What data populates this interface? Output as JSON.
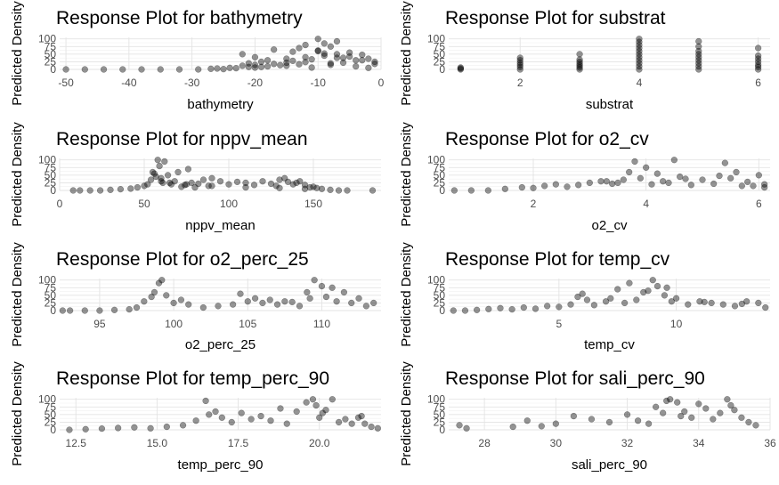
{
  "chart_data": [
    {
      "type": "scatter",
      "title": "Response Plot for bathymetry",
      "xlabel": "bathymetry",
      "ylabel": "Predicted Density",
      "xlim": [
        -51,
        0
      ],
      "ylim": [
        0,
        105
      ],
      "xticks": [
        -50,
        -40,
        -30,
        -20,
        -10,
        0
      ],
      "xtick_labels": [
        "-50",
        "-40",
        "-30",
        "-20",
        "-10",
        "0"
      ],
      "yticks": [
        0,
        25,
        50,
        75,
        100
      ],
      "ytick_labels": [
        "0",
        "25",
        "50",
        "75",
        "100"
      ],
      "grid": true,
      "x": [
        -50,
        -47,
        -44,
        -41,
        -38,
        -35,
        -32,
        -29,
        -27,
        -26,
        -25,
        -24,
        -23,
        -22,
        -21,
        -21,
        -20,
        -20,
        -19,
        -18,
        -18,
        -17,
        -16,
        -15,
        -15,
        -14,
        -13,
        -12,
        -12,
        -11,
        -10,
        -10,
        -9,
        -8,
        -8,
        -7,
        -6,
        -5,
        -4,
        -3,
        -2,
        -1,
        -22,
        -20,
        -17,
        -14,
        -12,
        -10,
        -9,
        -7,
        -5,
        -3,
        -1,
        -19,
        -15,
        -11,
        -8,
        -6,
        -4,
        -2,
        -13,
        -9,
        -7
      ],
      "y": [
        0,
        0,
        0,
        0,
        0,
        0,
        0,
        0,
        2,
        3,
        1,
        5,
        4,
        12,
        8,
        20,
        6,
        15,
        25,
        10,
        30,
        18,
        14,
        22,
        35,
        28,
        17,
        40,
        24,
        33,
        100,
        60,
        45,
        20,
        75,
        92,
        38,
        55,
        30,
        48,
        35,
        18,
        50,
        40,
        65,
        58,
        80,
        62,
        85,
        50,
        42,
        30,
        25,
        8,
        12,
        6,
        15,
        22,
        10,
        5,
        70,
        52,
        38
      ]
    },
    {
      "type": "scatter",
      "title": "Response Plot for substrat",
      "xlabel": "substrat",
      "ylabel": "Predicted Density",
      "xlim": [
        0.8,
        6.2
      ],
      "ylim": [
        0,
        105
      ],
      "xticks": [
        2,
        4,
        6
      ],
      "xtick_labels": [
        "2",
        "4",
        "6"
      ],
      "yticks": [
        0,
        25,
        50,
        75,
        100
      ],
      "ytick_labels": [
        "0",
        "25",
        "50",
        "75",
        "100"
      ],
      "grid": true,
      "x": [
        1,
        1,
        1,
        2,
        2,
        2,
        2,
        2,
        2,
        3,
        3,
        3,
        3,
        3,
        3,
        3,
        4,
        4,
        4,
        4,
        4,
        4,
        4,
        4,
        4,
        4,
        4,
        5,
        5,
        5,
        5,
        5,
        5,
        5,
        5,
        5,
        6,
        6,
        6,
        6,
        6,
        6,
        6
      ],
      "y": [
        0,
        3,
        6,
        0,
        8,
        15,
        22,
        30,
        38,
        0,
        6,
        12,
        18,
        25,
        32,
        50,
        0,
        10,
        20,
        30,
        40,
        50,
        60,
        70,
        80,
        90,
        100,
        0,
        10,
        20,
        30,
        40,
        50,
        60,
        75,
        92,
        0,
        8,
        15,
        25,
        35,
        45,
        70
      ]
    },
    {
      "type": "scatter",
      "title": "Response Plot for nppv_mean",
      "xlabel": "nppv_mean",
      "ylabel": "Predicted Density",
      "xlim": [
        0,
        190
      ],
      "ylim": [
        0,
        105
      ],
      "xticks": [
        0,
        50,
        100,
        150
      ],
      "xtick_labels": [
        "0",
        "50",
        "100",
        "150"
      ],
      "grid": true,
      "yticks": [
        0,
        25,
        50,
        75,
        100
      ],
      "ytick_labels": [
        "0",
        "25",
        "50",
        "75",
        "100"
      ],
      "x": [
        8,
        12,
        18,
        24,
        30,
        36,
        42,
        46,
        50,
        52,
        54,
        56,
        57,
        58,
        59,
        60,
        61,
        62,
        64,
        66,
        68,
        70,
        72,
        74,
        76,
        78,
        80,
        82,
        85,
        88,
        90,
        95,
        100,
        105,
        110,
        115,
        120,
        125,
        128,
        130,
        133,
        135,
        138,
        140,
        142,
        145,
        148,
        150,
        152,
        155,
        160,
        165,
        170,
        185,
        60,
        75,
        90,
        110,
        130,
        145,
        55,
        65
      ],
      "y": [
        0,
        0,
        0,
        0,
        2,
        4,
        6,
        10,
        15,
        20,
        35,
        55,
        45,
        100,
        80,
        40,
        25,
        95,
        50,
        20,
        30,
        60,
        12,
        18,
        70,
        25,
        10,
        22,
        35,
        15,
        40,
        30,
        20,
        28,
        25,
        18,
        30,
        22,
        15,
        35,
        40,
        28,
        20,
        25,
        30,
        18,
        10,
        12,
        8,
        5,
        2,
        0,
        0,
        0,
        30,
        20,
        15,
        10,
        8,
        5,
        60,
        25
      ]
    },
    {
      "type": "scatter",
      "title": "Response Plot for o2_cv",
      "xlabel": "o2_cv",
      "ylabel": "Predicted Density",
      "xlim": [
        0.5,
        6.2
      ],
      "ylim": [
        0,
        105
      ],
      "xticks": [
        2,
        4,
        6
      ],
      "xtick_labels": [
        "2",
        "4",
        "6"
      ],
      "yticks": [
        0,
        25,
        50,
        75,
        100
      ],
      "ytick_labels": [
        "0",
        "25",
        "50",
        "75",
        "100"
      ],
      "grid": true,
      "x": [
        0.6,
        0.9,
        1.2,
        1.5,
        1.8,
        2.0,
        2.2,
        2.4,
        2.6,
        2.8,
        3.0,
        3.2,
        3.4,
        3.6,
        3.7,
        3.8,
        3.9,
        4.0,
        4.1,
        4.2,
        4.3,
        4.4,
        4.5,
        4.6,
        4.8,
        5.0,
        5.2,
        5.4,
        5.5,
        5.6,
        5.8,
        5.9,
        6.0,
        6.1,
        6.1,
        3.3,
        3.5,
        4.7,
        5.3,
        5.7
      ],
      "y": [
        0,
        0,
        0,
        5,
        10,
        8,
        15,
        20,
        12,
        18,
        25,
        30,
        22,
        35,
        60,
        95,
        40,
        75,
        20,
        55,
        30,
        25,
        100,
        45,
        18,
        35,
        22,
        90,
        40,
        60,
        28,
        15,
        50,
        20,
        10,
        30,
        25,
        38,
        48,
        15
      ]
    },
    {
      "type": "scatter",
      "title": "Response Plot for o2_perc_25",
      "xlabel": "o2_perc_25",
      "ylabel": "Predicted Density",
      "xlim": [
        92.3,
        114
      ],
      "ylim": [
        0,
        105
      ],
      "xticks": [
        95,
        100,
        105,
        110
      ],
      "xtick_labels": [
        "95",
        "100",
        "105",
        "110"
      ],
      "yticks": [
        0,
        25,
        50,
        75,
        100
      ],
      "ytick_labels": [
        "0",
        "25",
        "50",
        "75",
        "100"
      ],
      "grid": true,
      "x": [
        92.5,
        93,
        94,
        95,
        96,
        97,
        97.5,
        98,
        98.5,
        98.7,
        99,
        99.2,
        99.5,
        100,
        100.5,
        101,
        102,
        103,
        104,
        104.5,
        105,
        105.5,
        106,
        106.5,
        107,
        107.5,
        108,
        108.5,
        109,
        109.2,
        109.5,
        110,
        110.3,
        110.7,
        111,
        111.5,
        112,
        112.5,
        113,
        113.5
      ],
      "y": [
        0,
        0,
        0,
        0,
        2,
        4,
        10,
        30,
        45,
        60,
        90,
        100,
        50,
        25,
        35,
        20,
        10,
        15,
        20,
        55,
        30,
        40,
        25,
        35,
        20,
        30,
        28,
        15,
        60,
        40,
        100,
        80,
        45,
        75,
        30,
        60,
        25,
        40,
        15,
        25
      ]
    },
    {
      "type": "scatter",
      "title": "Response Plot for temp_cv",
      "xlabel": "temp_cv",
      "ylabel": "Predicted Density",
      "xlim": [
        0.3,
        14
      ],
      "ylim": [
        0,
        105
      ],
      "xticks": [
        5,
        10
      ],
      "xtick_labels": [
        "5",
        "10"
      ],
      "yticks": [
        0,
        25,
        50,
        75,
        100
      ],
      "ytick_labels": [
        "0",
        "25",
        "50",
        "75",
        "100"
      ],
      "grid": true,
      "x": [
        0.5,
        1,
        1.5,
        2,
        2.5,
        3,
        3.5,
        4,
        4.5,
        5,
        5.5,
        5.8,
        6,
        6.5,
        7,
        7.5,
        7.8,
        8,
        8.3,
        8.6,
        9,
        9.2,
        9.5,
        9.8,
        10,
        10.5,
        11,
        11.5,
        12,
        12.5,
        13,
        13.5,
        13.8,
        6.2,
        7.2,
        8.8,
        9.6,
        11.2,
        12.8
      ],
      "y": [
        0,
        0,
        2,
        5,
        8,
        4,
        10,
        6,
        15,
        12,
        20,
        45,
        55,
        18,
        30,
        70,
        25,
        90,
        35,
        60,
        100,
        80,
        50,
        30,
        40,
        20,
        30,
        25,
        20,
        15,
        30,
        25,
        10,
        35,
        40,
        65,
        75,
        28,
        22
      ]
    },
    {
      "type": "scatter",
      "title": "Response Plot for temp_perc_90",
      "xlabel": "temp_perc_90",
      "ylabel": "Predicted Density",
      "xlim": [
        12,
        21.9
      ],
      "ylim": [
        0,
        105
      ],
      "xticks": [
        12.5,
        15.0,
        17.5,
        20.0
      ],
      "xtick_labels": [
        "12.5",
        "15.0",
        "17.5",
        "20.0"
      ],
      "yticks": [
        0,
        25,
        50,
        75,
        100
      ],
      "ytick_labels": [
        "0",
        "25",
        "50",
        "75",
        "100"
      ],
      "grid": true,
      "x": [
        12.3,
        12.8,
        13.3,
        13.8,
        14.3,
        14.8,
        15.3,
        15.8,
        16.2,
        16.5,
        16.8,
        17.0,
        17.3,
        17.6,
        17.9,
        18.2,
        18.5,
        18.8,
        19.0,
        19.3,
        19.6,
        19.8,
        20.0,
        20.2,
        20.4,
        20.6,
        20.8,
        21.0,
        21.2,
        21.4,
        21.6,
        21.8,
        16.6,
        19.9,
        20.1,
        21.3
      ],
      "y": [
        0,
        2,
        4,
        6,
        8,
        5,
        10,
        15,
        30,
        95,
        60,
        40,
        25,
        55,
        35,
        45,
        30,
        70,
        20,
        60,
        90,
        100,
        40,
        65,
        100,
        25,
        35,
        20,
        40,
        20,
        10,
        5,
        50,
        80,
        55,
        45
      ]
    },
    {
      "type": "scatter",
      "title": "Response Plot for sali_perc_90",
      "xlabel": "sali_perc_90",
      "ylabel": "Predicted Density",
      "xlim": [
        27.0,
        36.0
      ],
      "ylim": [
        0,
        105
      ],
      "xticks": [
        28,
        30,
        32,
        34,
        36
      ],
      "xtick_labels": [
        "28",
        "30",
        "32",
        "34",
        "36"
      ],
      "yticks": [
        0,
        25,
        50,
        75,
        100
      ],
      "ytick_labels": [
        "0",
        "25",
        "50",
        "75",
        "100"
      ],
      "grid": true,
      "x": [
        27.3,
        27.5,
        28.8,
        29.2,
        29.6,
        30.0,
        30.5,
        31.0,
        31.5,
        32.0,
        32.3,
        32.8,
        33.0,
        33.2,
        33.4,
        33.6,
        33.8,
        34.0,
        34.2,
        34.4,
        34.6,
        34.8,
        35.0,
        35.2,
        35.4,
        35.6,
        33.1,
        33.5,
        34.9,
        32.6
      ],
      "y": [
        15,
        5,
        10,
        30,
        12,
        20,
        45,
        35,
        25,
        50,
        30,
        75,
        55,
        100,
        90,
        60,
        40,
        85,
        70,
        35,
        55,
        100,
        65,
        40,
        25,
        15,
        95,
        45,
        80,
        20
      ]
    }
  ]
}
